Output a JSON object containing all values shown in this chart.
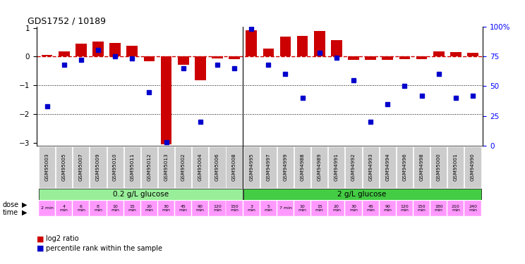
{
  "title": "GDS1752 / 10189",
  "samples": [
    "GSM95003",
    "GSM95005",
    "GSM95007",
    "GSM95009",
    "GSM95010",
    "GSM95011",
    "GSM95012",
    "GSM95013",
    "GSM95002",
    "GSM95004",
    "GSM95006",
    "GSM95008",
    "GSM94995",
    "GSM94997",
    "GSM94999",
    "GSM94988",
    "GSM94989",
    "GSM94991",
    "GSM94992",
    "GSM94993",
    "GSM94994",
    "GSM94996",
    "GSM94998",
    "GSM95000",
    "GSM95001",
    "GSM94990"
  ],
  "log2_ratio": [
    0.07,
    0.18,
    0.45,
    0.52,
    0.48,
    0.37,
    -0.15,
    -3.05,
    -0.28,
    -0.82,
    -0.07,
    -0.1,
    0.92,
    0.28,
    0.7,
    0.72,
    0.9,
    0.58,
    -0.12,
    -0.12,
    -0.12,
    -0.1,
    -0.1,
    0.18,
    0.16,
    0.12
  ],
  "percentile": [
    33,
    68,
    72,
    80,
    75,
    73,
    45,
    3,
    65,
    20,
    68,
    65,
    98,
    68,
    60,
    40,
    78,
    74,
    55,
    20,
    35,
    50,
    42,
    60,
    40,
    42
  ],
  "dose_labels": [
    "0.2 g/L glucose",
    "2 g/L glucose"
  ],
  "dose_split": 12,
  "time_labels": [
    "2 min",
    "4\nmin",
    "6\nmin",
    "8\nmin",
    "10\nmin",
    "15\nmin",
    "20\nmin",
    "30\nmin",
    "45\nmin",
    "90\nmin",
    "120\nmin",
    "150\nmin",
    "3\nmin",
    "5\nmin",
    "7 min",
    "10\nmin",
    "15\nmin",
    "20\nmin",
    "30\nmin",
    "45\nmin",
    "90\nmin",
    "120\nmin",
    "150\nmin",
    "180\nmin",
    "210\nmin",
    "240\nmin"
  ],
  "bar_color": "#cc0000",
  "dot_color": "#0000cc",
  "zero_line_color": "#cc0000",
  "dose_color_low": "#99ee99",
  "dose_color_high": "#44cc44",
  "sample_label_bg": "#cccccc",
  "time_color": "#ff99ff",
  "ylim": [
    -3.1,
    1.05
  ],
  "y2lim": [
    0,
    100
  ],
  "yticks": [
    -3,
    -2,
    -1,
    0,
    1
  ],
  "y2ticks": [
    0,
    25,
    50,
    75,
    100
  ],
  "hline_positions": [
    -1,
    -2
  ],
  "background_color": "#ffffff"
}
